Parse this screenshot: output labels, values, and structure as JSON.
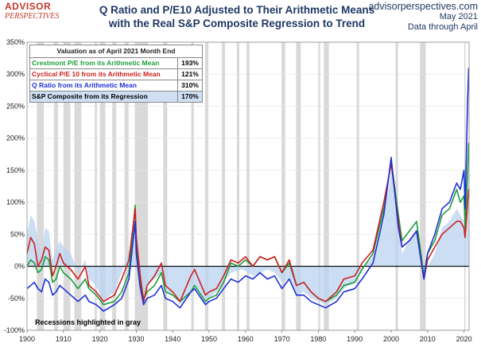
{
  "header": {
    "logo_top": "ADVISOR",
    "logo_bottom": "PERSPECTIVES",
    "title_line1": "Q Ratio and P/E10 Adjusted to Their Arithmetic Means",
    "title_line2": "with the Real S&P Composite Regression to Trend",
    "site": "advisorperspectives.com",
    "date": "May 2021",
    "data_through": "Data through April"
  },
  "legend": {
    "header": "Valuation as of April 2021 Month End",
    "rows": [
      {
        "label": "Crestmont P/E from its Arithmetic Mean",
        "value": "193%",
        "color": "#1a9e3a",
        "bg": "#ffffff"
      },
      {
        "label": "Cyclical P/E 10 from its Arithmetic Mean",
        "value": "121%",
        "color": "#cc1f1f",
        "bg": "#ffffff"
      },
      {
        "label": "Q Ratio from its Arithmetic Mean",
        "value": "310%",
        "color": "#1d2fd6",
        "bg": "#ffffff"
      },
      {
        "label": "S&P Composite from its Regression",
        "value": "170%",
        "color": "#000000",
        "bg": "#cfe0f5"
      }
    ]
  },
  "note": "Recessions highlighted in gray",
  "chart_data": {
    "type": "line",
    "title": "Q Ratio and P/E10 Adjusted to Their Arithmetic Means with the Real S&P Composite Regression to Trend",
    "xlim": [
      1900,
      2021.4
    ],
    "ylim": [
      -100,
      350
    ],
    "x_ticks": [
      1900,
      1910,
      1920,
      1930,
      1940,
      1950,
      1960,
      1970,
      1980,
      1990,
      2000,
      2010,
      2020
    ],
    "x_tick_labels": [
      "1900",
      "1910",
      "1920",
      "1930",
      "1940",
      "1950",
      "1960",
      "1970",
      "1980",
      "1990",
      "2000",
      "2010",
      "2020"
    ],
    "y_ticks": [
      -100,
      -50,
      0,
      50,
      100,
      150,
      200,
      250,
      300,
      350
    ],
    "y_tick_labels": [
      "-100%",
      "-50%",
      "0%",
      "50%",
      "100%",
      "150%",
      "200%",
      "250%",
      "300%",
      "350%"
    ],
    "recessions": [
      [
        1902.7,
        1904.6
      ],
      [
        1907.4,
        1908.5
      ],
      [
        1910.0,
        1911.9
      ],
      [
        1913.0,
        1914.9
      ],
      [
        1918.6,
        1919.2
      ],
      [
        1920.0,
        1921.5
      ],
      [
        1923.4,
        1924.5
      ],
      [
        1926.8,
        1927.9
      ],
      [
        1929.6,
        1933.2
      ],
      [
        1937.4,
        1938.5
      ],
      [
        1945.1,
        1945.8
      ],
      [
        1948.9,
        1949.8
      ],
      [
        1953.5,
        1954.4
      ],
      [
        1957.6,
        1958.3
      ],
      [
        1960.3,
        1961.1
      ],
      [
        1969.9,
        1970.9
      ],
      [
        1973.9,
        1975.2
      ],
      [
        1980.0,
        1980.5
      ],
      [
        1981.5,
        1982.9
      ],
      [
        1990.5,
        1991.2
      ],
      [
        2001.2,
        2001.9
      ],
      [
        2007.9,
        2009.5
      ],
      [
        2020.1,
        2020.4
      ]
    ],
    "series": [
      {
        "name": "S&P Composite from its Regression",
        "color": "#b9d3f0",
        "kind": "area",
        "x": [
          1900,
          1901,
          1902,
          1903,
          1904,
          1905,
          1906,
          1907,
          1908,
          1909,
          1910,
          1912,
          1914,
          1916,
          1917,
          1919,
          1921,
          1924,
          1926,
          1929,
          1929.7,
          1930,
          1932,
          1933,
          1935,
          1936.9,
          1938,
          1940,
          1942,
          1945,
          1946,
          1949,
          1950,
          1952,
          1954,
          1956,
          1959,
          1961,
          1962,
          1964,
          1966,
          1968,
          1970,
          1972,
          1974,
          1976,
          1978,
          1980,
          1982,
          1985,
          1987,
          1990,
          1992,
          1995,
          1998,
          2000,
          2002,
          2003,
          2005,
          2007,
          2009,
          2010,
          2012,
          2014,
          2016,
          2018,
          2019,
          2020,
          2020.3,
          2021,
          2021.3
        ],
        "y": [
          50,
          80,
          70,
          40,
          20,
          60,
          55,
          10,
          25,
          40,
          30,
          20,
          -10,
          10,
          -20,
          -30,
          -55,
          -40,
          -10,
          40,
          90,
          30,
          -40,
          -30,
          -20,
          -10,
          -40,
          -45,
          -60,
          -40,
          -30,
          -55,
          -50,
          -40,
          -25,
          -10,
          -5,
          -10,
          -15,
          -10,
          -5,
          -10,
          -25,
          -20,
          -45,
          -40,
          -50,
          -55,
          -60,
          -50,
          -35,
          -25,
          -5,
          15,
          70,
          150,
          60,
          20,
          40,
          60,
          -15,
          0,
          20,
          60,
          70,
          90,
          80,
          70,
          60,
          120,
          170
        ]
      },
      {
        "name": "Crestmont P/E from its Arithmetic Mean",
        "color": "#1a9e3a",
        "kind": "line",
        "x": [
          1900,
          1901,
          1902,
          1903,
          1904,
          1905,
          1906,
          1907,
          1908,
          1909,
          1910,
          1912,
          1914,
          1916,
          1917,
          1919,
          1921,
          1924,
          1926,
          1928,
          1929.7,
          1930,
          1931,
          1932,
          1933,
          1935,
          1936.9,
          1938,
          1940,
          1942,
          1945,
          1946,
          1949,
          1950,
          1952,
          1954,
          1956,
          1958,
          1960,
          1962,
          1964,
          1966,
          1968,
          1970,
          1972,
          1974,
          1976,
          1978,
          1980,
          1982,
          1985,
          1987,
          1990,
          1992,
          1995,
          1998,
          2000,
          2002,
          2003,
          2005,
          2007,
          2009,
          2010,
          2012,
          2014,
          2016,
          2018,
          2019,
          2020,
          2020.3,
          2021,
          2021.3
        ],
        "y": [
          0,
          10,
          5,
          -10,
          -5,
          15,
          10,
          -25,
          -20,
          0,
          -10,
          -20,
          -35,
          -20,
          -35,
          -45,
          -60,
          -55,
          -40,
          -10,
          95,
          40,
          -20,
          -50,
          -40,
          -30,
          -10,
          -40,
          -45,
          -55,
          -40,
          -30,
          -55,
          -50,
          -45,
          -25,
          5,
          0,
          10,
          0,
          15,
          10,
          15,
          -10,
          5,
          -30,
          -25,
          -40,
          -50,
          -55,
          -45,
          -30,
          -25,
          -5,
          20,
          90,
          165,
          80,
          40,
          55,
          70,
          -15,
          20,
          40,
          80,
          90,
          120,
          100,
          110,
          60,
          150,
          193
        ]
      },
      {
        "name": "Cyclical P/E 10 from its Arithmetic Mean",
        "color": "#cc1f1f",
        "kind": "line",
        "x": [
          1900,
          1901,
          1902,
          1903,
          1904,
          1905,
          1906,
          1907,
          1908,
          1909,
          1910,
          1912,
          1914,
          1916,
          1917,
          1919,
          1921,
          1924,
          1926,
          1928,
          1929.7,
          1930,
          1931,
          1932,
          1933,
          1935,
          1936.9,
          1938,
          1940,
          1942,
          1945,
          1946,
          1949,
          1950,
          1952,
          1954,
          1956,
          1958,
          1960,
          1962,
          1964,
          1966,
          1968,
          1970,
          1972,
          1974,
          1976,
          1978,
          1980,
          1982,
          1985,
          1987,
          1990,
          1992,
          1995,
          1998,
          2000,
          2002,
          2003,
          2005,
          2007,
          2009,
          2010,
          2012,
          2014,
          2016,
          2018,
          2019,
          2020,
          2020.3,
          2021,
          2021.3
        ],
        "y": [
          20,
          45,
          35,
          0,
          10,
          30,
          25,
          -15,
          0,
          20,
          5,
          -5,
          -20,
          0,
          -30,
          -40,
          -55,
          -45,
          -20,
          10,
          90,
          45,
          -10,
          -55,
          -30,
          -15,
          5,
          -30,
          -40,
          -55,
          -15,
          -5,
          -45,
          -40,
          -35,
          -15,
          10,
          5,
          15,
          0,
          15,
          10,
          15,
          -10,
          10,
          -30,
          -25,
          -40,
          -50,
          -55,
          -40,
          -20,
          -15,
          5,
          25,
          100,
          160,
          70,
          30,
          40,
          55,
          -20,
          10,
          30,
          50,
          60,
          70,
          70,
          60,
          45,
          100,
          121
        ]
      },
      {
        "name": "Q Ratio from its Arithmetic Mean",
        "color": "#1d2fd6",
        "kind": "line",
        "x": [
          1900,
          1901,
          1902,
          1903,
          1904,
          1905,
          1906,
          1907,
          1908,
          1909,
          1910,
          1912,
          1914,
          1916,
          1917,
          1919,
          1921,
          1924,
          1926,
          1928,
          1929.7,
          1930,
          1931,
          1932,
          1933,
          1935,
          1936.9,
          1938,
          1940,
          1942,
          1945,
          1946,
          1949,
          1950,
          1952,
          1954,
          1956,
          1958,
          1960,
          1962,
          1964,
          1966,
          1968,
          1970,
          1972,
          1974,
          1976,
          1978,
          1980,
          1982,
          1985,
          1987,
          1990,
          1992,
          1995,
          1998,
          2000,
          2002,
          2003,
          2005,
          2007,
          2009,
          2010,
          2012,
          2014,
          2016,
          2018,
          2019,
          2020,
          2020.3,
          2021,
          2021.3
        ],
        "y": [
          -35,
          -30,
          -25,
          -35,
          -40,
          -20,
          -25,
          -45,
          -40,
          -30,
          -35,
          -45,
          -55,
          -45,
          -55,
          -60,
          -70,
          -60,
          -50,
          -20,
          70,
          20,
          -30,
          -60,
          -50,
          -45,
          -30,
          -50,
          -55,
          -65,
          -40,
          -35,
          -60,
          -55,
          -50,
          -35,
          -20,
          -25,
          -15,
          -20,
          -10,
          -20,
          -15,
          -35,
          -20,
          -45,
          -45,
          -55,
          -60,
          -65,
          -55,
          -40,
          -35,
          -20,
          5,
          80,
          170,
          60,
          30,
          40,
          55,
          -20,
          20,
          50,
          90,
          100,
          130,
          120,
          150,
          90,
          260,
          310
        ]
      }
    ]
  }
}
